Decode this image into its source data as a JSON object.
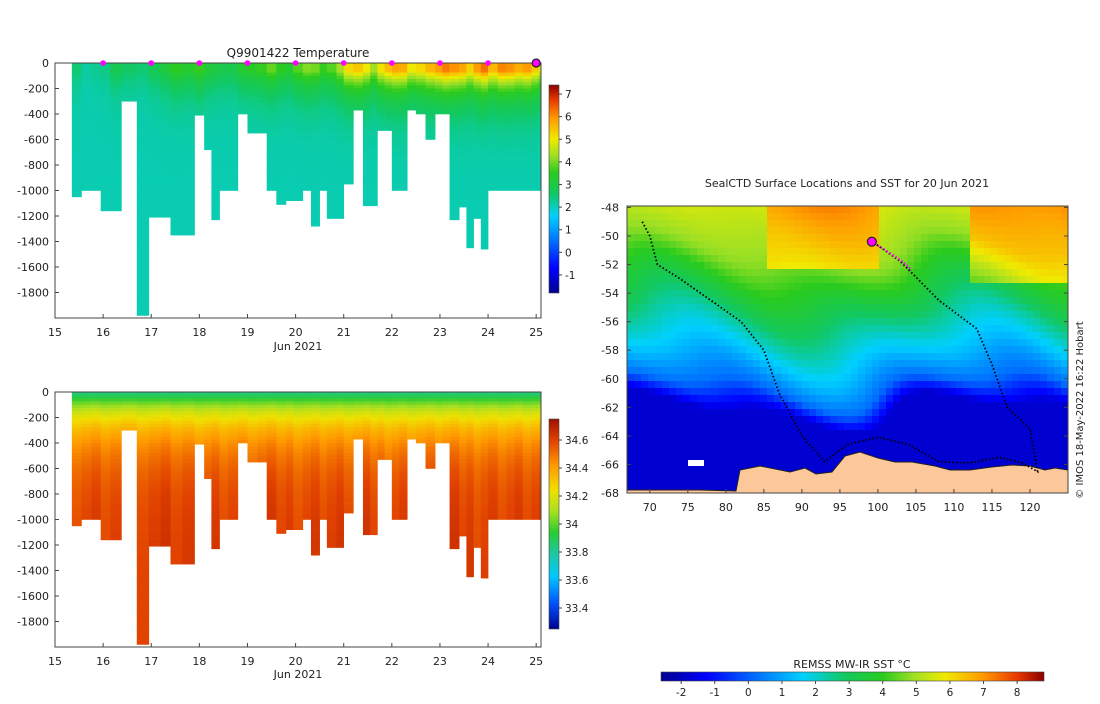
{
  "chart_data": [
    {
      "type": "heatmap",
      "title": "Q9901422  Temperature",
      "xlabel": "Jun 2021",
      "xticks": [
        "15",
        "16",
        "17",
        "18",
        "19",
        "20",
        "21",
        "22",
        "23",
        "24",
        "25"
      ],
      "xlim": [
        15,
        25.1
      ],
      "ylim": [
        -2000,
        0
      ],
      "yticks": [
        0,
        -200,
        -400,
        -600,
        -800,
        -1000,
        -1200,
        -1400,
        -1600,
        -1800
      ],
      "colorbar_ticks": [
        "7",
        "6",
        "5",
        "4",
        "3",
        "2",
        "1",
        "0",
        "-1"
      ],
      "colorbar_range": [
        -1.8,
        7.4
      ],
      "surface_markers": [
        16,
        17,
        18,
        19,
        20,
        21,
        22,
        23,
        24
      ],
      "current_marker": 25,
      "profile_days": [
        15.35,
        15.55,
        15.75,
        15.95,
        16.15,
        16.38,
        16.7,
        16.95,
        17.2,
        17.4,
        17.65,
        17.9,
        18.1,
        18.25,
        18.42,
        18.6,
        18.8,
        19.0,
        19.2,
        19.4,
        19.6,
        19.8,
        19.95,
        20.15,
        20.32,
        20.5,
        20.65,
        20.85,
        21.0,
        21.2,
        21.4,
        21.55,
        21.7,
        21.85,
        22.0,
        22.15,
        22.32,
        22.5,
        22.7,
        22.9,
        23.05,
        23.2,
        23.4,
        23.55,
        23.7,
        23.85,
        24.0,
        24.2,
        24.38,
        24.55,
        24.72,
        24.9,
        25.05
      ],
      "profile_depths": [
        1050,
        1000,
        1000,
        1160,
        1160,
        300,
        1980,
        1210,
        1210,
        1350,
        1350,
        410,
        680,
        1230,
        1000,
        1000,
        400,
        550,
        550,
        1000,
        1110,
        1080,
        1080,
        1000,
        1280,
        1000,
        1220,
        1220,
        950,
        370,
        1120,
        1120,
        530,
        530,
        1000,
        1000,
        370,
        400,
        600,
        400,
        400,
        1230,
        1130,
        1450,
        1220,
        1460,
        1000,
        1000,
        1000,
        1000,
        1000,
        1000,
        1000
      ],
      "surface_temps": [
        2.5,
        2.2,
        2.3,
        2.4,
        2.8,
        2.6,
        2.5,
        2.8,
        3.1,
        3.5,
        3.3,
        3.6,
        3.2,
        3.0,
        2.9,
        2.9,
        3.3,
        3.4,
        3.6,
        3.9,
        3.5,
        3.3,
        3.8,
        4.1,
        4.0,
        3.6,
        3.8,
        4.3,
        5.2,
        5.4,
        5.0,
        4.3,
        5.1,
        5.5,
        5.8,
        5.7,
        5.0,
        5.2,
        5.6,
        5.9,
        6.2,
        6.0,
        5.8,
        5.3,
        5.9,
        6.3,
        5.6,
        6.1,
        6.0,
        5.7,
        5.9,
        5.4,
        4.8
      ],
      "deep_temp": 2.1
    },
    {
      "type": "heatmap",
      "title": "",
      "xlabel": "Jun 2021",
      "xticks": [
        "15",
        "16",
        "17",
        "18",
        "19",
        "20",
        "21",
        "22",
        "23",
        "24",
        "25"
      ],
      "xlim": [
        15,
        25.1
      ],
      "ylim": [
        -2000,
        0
      ],
      "yticks": [
        0,
        -200,
        -400,
        -600,
        -800,
        -1000,
        -1200,
        -1400,
        -1600,
        -1800
      ],
      "colorbar_ticks": [
        "34.6",
        "34.4",
        "34.2",
        "34",
        "33.8",
        "33.6",
        "33.4"
      ],
      "colorbar_range": [
        33.25,
        34.75
      ],
      "surface_sal": 33.85,
      "deep_sal": 34.62
    },
    {
      "type": "heatmap",
      "title": "SealCTD Surface Locations and SST for 20 Jun 2021",
      "xticks": [
        "70",
        "75",
        "80",
        "85",
        "90",
        "95",
        "100",
        "105",
        "110",
        "115",
        "120"
      ],
      "yticks": [
        "-48",
        "-50",
        "-52",
        "-54",
        "-56",
        "-58",
        "-60",
        "-62",
        "-64",
        "-66",
        "-68"
      ],
      "xlim": [
        67,
        125
      ],
      "ylim": [
        -68,
        -47.9
      ],
      "sst_bands": [
        {
          "lat": -48,
          "value": 5.5
        },
        {
          "lat": -51,
          "value": 4.8
        },
        {
          "lat": -53.5,
          "value": 3.6
        },
        {
          "lat": -56,
          "value": 2.4
        },
        {
          "lat": -58.5,
          "value": 1.3
        },
        {
          "lat": -60.5,
          "value": 0.2
        },
        {
          "lat": -62,
          "value": -1.8
        },
        {
          "lat": -68,
          "value": -1.8
        }
      ],
      "track": [
        [
          69,
          -49
        ],
        [
          70,
          -50
        ],
        [
          71,
          -52
        ],
        [
          74,
          -53
        ],
        [
          78,
          -54.5
        ],
        [
          82,
          -56
        ],
        [
          85,
          -58
        ],
        [
          87,
          -61
        ],
        [
          90,
          -64
        ],
        [
          93,
          -65.8
        ],
        [
          96,
          -64.6
        ],
        [
          100,
          -64.1
        ],
        [
          104,
          -64.6
        ],
        [
          108,
          -65.8
        ],
        [
          112,
          -65.9
        ],
        [
          116,
          -65.5
        ],
        [
          119,
          -65.9
        ],
        [
          121,
          -66.5
        ],
        [
          120,
          -63.5
        ],
        [
          117,
          -62
        ],
        [
          115,
          -59
        ],
        [
          113,
          -56.5
        ],
        [
          108,
          -54.5
        ],
        [
          103,
          -51.8
        ],
        [
          99,
          -50.3
        ]
      ],
      "highlight_track": [
        [
          99.2,
          -50.4
        ],
        [
          101,
          -51
        ],
        [
          103,
          -51.7
        ],
        [
          104.5,
          -52.4
        ]
      ],
      "current_position": [
        99.2,
        -50.4
      ],
      "colorbar_label": "REMSS MW-IR SST °C",
      "colorbar_ticks": [
        "-2",
        "-1",
        "0",
        "1",
        "2",
        "3",
        "4",
        "5",
        "6",
        "7",
        "8"
      ],
      "colorbar_range": [
        -2.6,
        8.8
      ]
    }
  ],
  "credit": "© IMOS 18-May-2022 16:22 Hobart"
}
